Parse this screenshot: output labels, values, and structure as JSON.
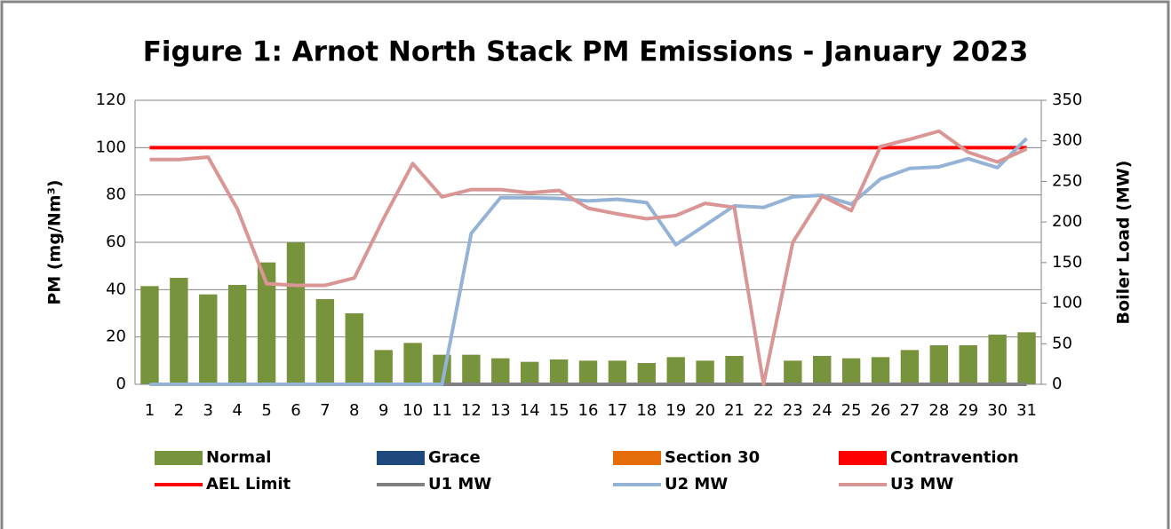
{
  "chart_data": {
    "type": "combo",
    "title": "Figure 1: Arnot North Stack PM Emissions -  January 2023",
    "y_label": "PM (mg/Nm³)",
    "y2_label": "Boiler Load (MW)",
    "categories": [
      "1",
      "2",
      "3",
      "4",
      "5",
      "6",
      "7",
      "8",
      "9",
      "10",
      "11",
      "12",
      "13",
      "14",
      "15",
      "16",
      "17",
      "18",
      "19",
      "20",
      "21",
      "22",
      "23",
      "24",
      "25",
      "26",
      "27",
      "28",
      "29",
      "30",
      "31"
    ],
    "ylim": [
      0,
      120
    ],
    "yticks": [
      0,
      20,
      40,
      60,
      80,
      100,
      120
    ],
    "y2lim": [
      0,
      350
    ],
    "y2ticks": [
      0,
      50,
      100,
      150,
      200,
      250,
      300,
      350
    ],
    "grid": true,
    "legend": "bottom",
    "series": [
      {
        "name": "Normal",
        "type": "bar",
        "color": "#77933c",
        "values": [
          41.5,
          45,
          38,
          42,
          51.5,
          60,
          36,
          30,
          14.5,
          17.5,
          12.5,
          12.5,
          11,
          9.5,
          10.5,
          10,
          10,
          9,
          11.5,
          10,
          12,
          0,
          10,
          12,
          11,
          11.5,
          14.5,
          16.5,
          16.5,
          21,
          22
        ]
      },
      {
        "name": "Grace",
        "type": "bar",
        "color": "#1f497d",
        "values": [
          0,
          0,
          0,
          0,
          0,
          0,
          0,
          0,
          0,
          0,
          0,
          0,
          0,
          0,
          0,
          0,
          0,
          0,
          0,
          0,
          0,
          0,
          0,
          0,
          0,
          0,
          0,
          0,
          0,
          0,
          0
        ]
      },
      {
        "name": "Section 30",
        "type": "bar",
        "color": "#e46c0a",
        "values": [
          0,
          0,
          0,
          0,
          0,
          0,
          0,
          0,
          0,
          0,
          0,
          0,
          0,
          0,
          0,
          0,
          0,
          0,
          0,
          0,
          0,
          0,
          0,
          0,
          0,
          0,
          0,
          0,
          0,
          0,
          0
        ]
      },
      {
        "name": "Contravention",
        "type": "bar",
        "color": "#ff0000",
        "values": [
          0,
          0,
          0,
          0,
          0,
          0,
          0,
          0,
          0,
          0,
          0,
          0,
          0,
          0,
          0,
          0,
          0,
          0,
          0,
          0,
          0,
          0,
          0,
          0,
          0,
          0,
          0,
          0,
          0,
          0,
          0
        ]
      },
      {
        "name": "AEL Limit",
        "type": "line",
        "color": "#ff0000",
        "values": [
          100,
          100,
          100,
          100,
          100,
          100,
          100,
          100,
          100,
          100,
          100,
          100,
          100,
          100,
          100,
          100,
          100,
          100,
          100,
          100,
          100,
          100,
          100,
          100,
          100,
          100,
          100,
          100,
          100,
          100,
          100
        ]
      },
      {
        "name": "U1 MW",
        "type": "line",
        "axis": "y2",
        "color": "#808080",
        "values": [
          0,
          0,
          0,
          0,
          0,
          0,
          0,
          0,
          0,
          0,
          0,
          0,
          0,
          0,
          0,
          0,
          0,
          0,
          0,
          0,
          0,
          0,
          0,
          0,
          0,
          0,
          0,
          0,
          0,
          0,
          0
        ]
      },
      {
        "name": "U2 MW",
        "type": "line",
        "axis": "y2",
        "color": "#95b3d7",
        "values": [
          0,
          0,
          0,
          0,
          0,
          0,
          0,
          0,
          0,
          0,
          0,
          186,
          230,
          230,
          229,
          226,
          228,
          224,
          172,
          196,
          220,
          218,
          231,
          233,
          222,
          253,
          266,
          268,
          278,
          267,
          303
        ]
      },
      {
        "name": "U3 MW",
        "type": "line",
        "axis": "y2",
        "color": "#d99694",
        "values": [
          277,
          277,
          280,
          216,
          124,
          122,
          122,
          131,
          204,
          272,
          231,
          240,
          240,
          236,
          239,
          217,
          210,
          204,
          208,
          223,
          218,
          0,
          175,
          232,
          214,
          293,
          302,
          312,
          286,
          274,
          290
        ]
      }
    ]
  }
}
